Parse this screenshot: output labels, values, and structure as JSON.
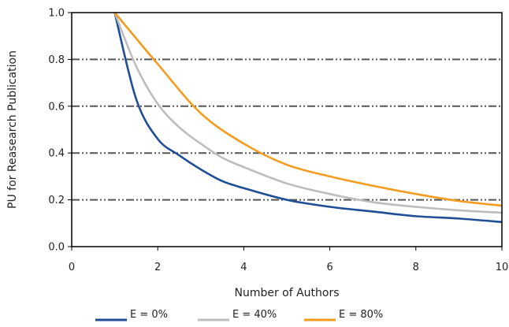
{
  "chart_data": {
    "type": "line",
    "xlabel": "Number of Authors",
    "ylabel": "PU for Reasearch Publication",
    "xlim": [
      0,
      10
    ],
    "ylim": [
      0,
      1.0
    ],
    "x_ticks": [
      "0",
      "2",
      "4",
      "6",
      "8",
      "10"
    ],
    "y_ticks": [
      "0.0",
      "0.2",
      "0.4",
      "0.6",
      "0.8",
      "1.0"
    ],
    "gridlines": "horizontal, dash-dot",
    "legend_position": "bottom",
    "series": [
      {
        "name": "E = 0%",
        "color": "#1f4e96",
        "x": [
          1,
          1.5,
          2,
          2.5,
          3,
          3.5,
          4,
          5,
          6,
          7,
          8,
          9,
          10
        ],
        "y": [
          1.0,
          0.63,
          0.46,
          0.39,
          0.33,
          0.28,
          0.25,
          0.2,
          0.17,
          0.15,
          0.13,
          0.12,
          0.105
        ]
      },
      {
        "name": "E = 40%",
        "color": "#bdbdbd",
        "x": [
          1,
          1.5,
          2,
          2.5,
          3,
          3.5,
          4,
          5,
          6,
          7,
          8,
          9,
          10
        ],
        "y": [
          1.0,
          0.77,
          0.61,
          0.51,
          0.44,
          0.38,
          0.34,
          0.27,
          0.225,
          0.19,
          0.17,
          0.155,
          0.145
        ]
      },
      {
        "name": "E = 80%",
        "color": "#f39c1f",
        "x": [
          1,
          2,
          3,
          4,
          5,
          6,
          7,
          8,
          9,
          10
        ],
        "y": [
          1.0,
          0.78,
          0.57,
          0.44,
          0.35,
          0.3,
          0.26,
          0.225,
          0.195,
          0.175
        ]
      }
    ]
  }
}
